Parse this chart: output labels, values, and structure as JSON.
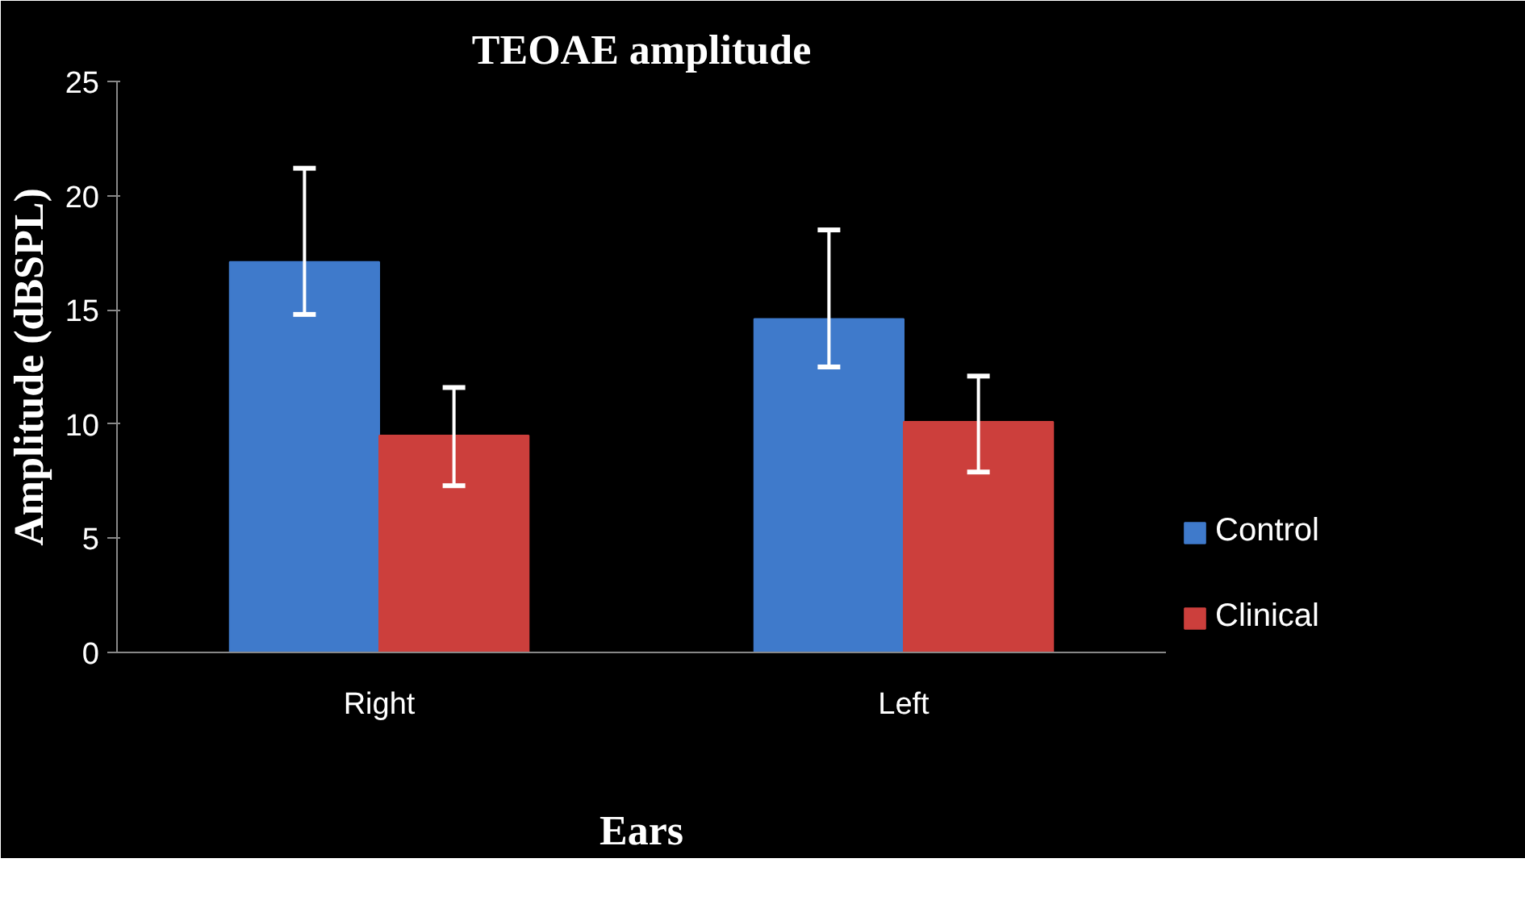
{
  "chart_data": {
    "type": "bar",
    "title": "TEOAE amplitude",
    "xlabel": "Ears",
    "ylabel": "Amplitude (dBSPL)",
    "categories": [
      "Right",
      "Left"
    ],
    "series": [
      {
        "name": "Control",
        "color": "#3f7acb",
        "values": [
          17.1,
          14.6
        ],
        "errors": [
          [
            14.8,
            21.2
          ],
          [
            12.5,
            18.5
          ]
        ]
      },
      {
        "name": "Clinical",
        "color": "#cc3f3c",
        "values": [
          9.5,
          10.1
        ],
        "errors": [
          [
            7.3,
            11.6
          ],
          [
            7.9,
            12.1
          ]
        ]
      }
    ],
    "ylim": [
      0,
      25
    ],
    "yticks": [
      0,
      5,
      10,
      15,
      20,
      25
    ],
    "grid": false,
    "legend": "bottom right"
  }
}
